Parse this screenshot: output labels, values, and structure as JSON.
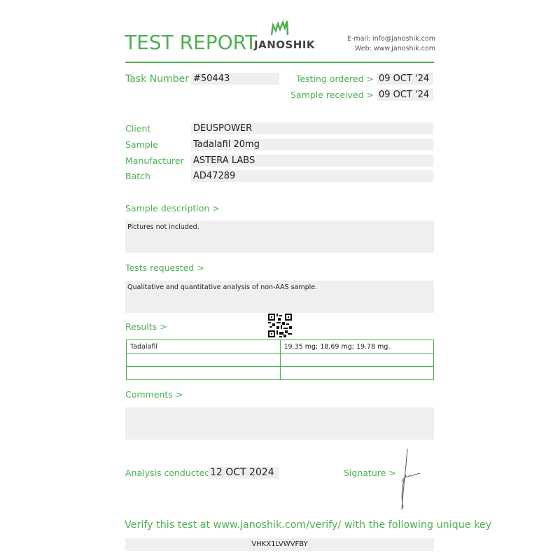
{
  "header": {
    "title": "TEST REPORT",
    "logo_text": "JANOSHIK",
    "email": "E-mail: info@janoshik.com",
    "web": "Web: www.janoshik.com",
    "accent_color": "#4cb050"
  },
  "task": {
    "label": "Task Number",
    "value": "#50443"
  },
  "dates": {
    "ordered_label": "Testing ordered  >",
    "ordered_value": "09 OCT '24",
    "received_label": "Sample received >",
    "received_value": "09 OCT '24"
  },
  "fields": [
    {
      "label": "Client",
      "value": "DEUSPOWER"
    },
    {
      "label": "Sample",
      "value": "Tadalafil 20mg"
    },
    {
      "label": "Manufacturer",
      "value": "ASTERA LABS"
    },
    {
      "label": "Batch",
      "value": "AD47289"
    }
  ],
  "sample_description": {
    "label": "Sample description >",
    "value": "Pictures not included."
  },
  "tests_requested": {
    "label": "Tests requested >",
    "value": "Qualitative and quantitative analysis of non-AAS sample."
  },
  "results": {
    "label": "Results >",
    "rows": [
      [
        "Tadalafil",
        "19.35 mg; 18.69 mg; 19.78 mg."
      ],
      [
        "",
        ""
      ],
      [
        "",
        ""
      ]
    ]
  },
  "comments": {
    "label": "Comments >",
    "value": ""
  },
  "analysis": {
    "label": "Analysis conducted >",
    "value": "12 OCT 2024"
  },
  "signature": {
    "label": "Signature >"
  },
  "verify": {
    "text": "Verify this test at www.janoshik.com/verify/ with the following unique key",
    "key": "VHKX1LVWVFBY"
  }
}
